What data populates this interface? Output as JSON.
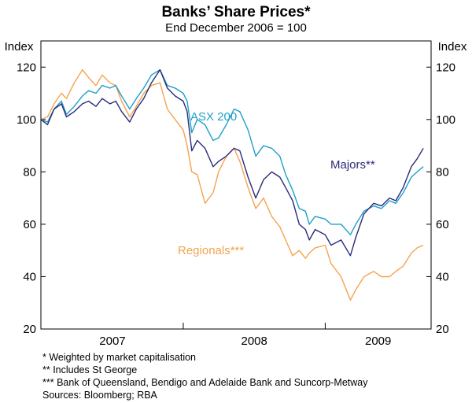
{
  "chart_data": {
    "type": "line",
    "title": "Banks’ Share Prices*",
    "subtitle": "End December 2006 = 100",
    "ylabel_left": "Index",
    "ylabel_right": "Index",
    "ylim": [
      20,
      130
    ],
    "yticks": [
      20,
      40,
      60,
      80,
      100,
      120
    ],
    "xlim": [
      "2006-12-29",
      "2009-09-30"
    ],
    "xtick_labels": [
      "2007",
      "2008",
      "2009"
    ],
    "grid": false,
    "series": [
      {
        "name": "ASX 200",
        "color": "#1fa0c8",
        "points": [
          [
            "2006-12-29",
            100
          ],
          [
            "2007-01-15",
            99
          ],
          [
            "2007-02-01",
            104
          ],
          [
            "2007-02-20",
            107
          ],
          [
            "2007-03-05",
            102
          ],
          [
            "2007-03-25",
            105
          ],
          [
            "2007-04-15",
            109
          ],
          [
            "2007-05-01",
            111
          ],
          [
            "2007-05-20",
            110
          ],
          [
            "2007-06-05",
            113
          ],
          [
            "2007-06-25",
            112
          ],
          [
            "2007-07-10",
            113
          ],
          [
            "2007-07-25",
            109
          ],
          [
            "2007-08-15",
            104
          ],
          [
            "2007-09-01",
            108
          ],
          [
            "2007-09-20",
            112
          ],
          [
            "2007-10-10",
            117
          ],
          [
            "2007-11-01",
            119
          ],
          [
            "2007-11-20",
            113
          ],
          [
            "2007-12-10",
            112
          ],
          [
            "2007-12-31",
            110
          ],
          [
            "2008-01-10",
            107
          ],
          [
            "2008-01-22",
            95
          ],
          [
            "2008-02-05",
            100
          ],
          [
            "2008-02-25",
            98
          ],
          [
            "2008-03-17",
            92
          ],
          [
            "2008-03-31",
            93
          ],
          [
            "2008-04-20",
            98
          ],
          [
            "2008-05-10",
            104
          ],
          [
            "2008-05-25",
            103
          ],
          [
            "2008-06-15",
            96
          ],
          [
            "2008-07-05",
            86
          ],
          [
            "2008-07-25",
            90
          ],
          [
            "2008-08-15",
            89
          ],
          [
            "2008-09-05",
            86
          ],
          [
            "2008-09-20",
            79
          ],
          [
            "2008-10-08",
            73
          ],
          [
            "2008-10-25",
            66
          ],
          [
            "2008-11-10",
            65
          ],
          [
            "2008-11-20",
            60
          ],
          [
            "2008-12-05",
            63
          ],
          [
            "2008-12-31",
            62
          ],
          [
            "2009-01-15",
            60
          ],
          [
            "2009-02-10",
            60
          ],
          [
            "2009-03-06",
            56
          ],
          [
            "2009-03-20",
            60
          ],
          [
            "2009-04-10",
            65
          ],
          [
            "2009-05-05",
            67
          ],
          [
            "2009-05-25",
            66
          ],
          [
            "2009-06-15",
            69
          ],
          [
            "2009-07-01",
            68
          ],
          [
            "2009-07-20",
            72
          ],
          [
            "2009-08-10",
            78
          ],
          [
            "2009-08-25",
            80
          ],
          [
            "2009-09-10",
            82
          ]
        ]
      },
      {
        "name": "Majors**",
        "color": "#2b2b7a",
        "points": [
          [
            "2006-12-29",
            100
          ],
          [
            "2007-01-15",
            98
          ],
          [
            "2007-02-01",
            104
          ],
          [
            "2007-02-20",
            106
          ],
          [
            "2007-03-05",
            101
          ],
          [
            "2007-03-25",
            103
          ],
          [
            "2007-04-15",
            106
          ],
          [
            "2007-05-01",
            107
          ],
          [
            "2007-05-20",
            105
          ],
          [
            "2007-06-05",
            108
          ],
          [
            "2007-06-25",
            106
          ],
          [
            "2007-07-10",
            107
          ],
          [
            "2007-07-25",
            103
          ],
          [
            "2007-08-15",
            99
          ],
          [
            "2007-09-01",
            104
          ],
          [
            "2007-09-20",
            108
          ],
          [
            "2007-10-10",
            114
          ],
          [
            "2007-11-01",
            119
          ],
          [
            "2007-11-20",
            112
          ],
          [
            "2007-12-10",
            109
          ],
          [
            "2007-12-31",
            107
          ],
          [
            "2008-01-10",
            103
          ],
          [
            "2008-01-22",
            88
          ],
          [
            "2008-02-05",
            92
          ],
          [
            "2008-02-25",
            89
          ],
          [
            "2008-03-17",
            82
          ],
          [
            "2008-03-31",
            84
          ],
          [
            "2008-04-20",
            86
          ],
          [
            "2008-05-10",
            89
          ],
          [
            "2008-05-25",
            88
          ],
          [
            "2008-06-15",
            78
          ],
          [
            "2008-07-05",
            70
          ],
          [
            "2008-07-25",
            77
          ],
          [
            "2008-08-15",
            80
          ],
          [
            "2008-09-05",
            78
          ],
          [
            "2008-09-20",
            74
          ],
          [
            "2008-10-08",
            69
          ],
          [
            "2008-10-25",
            60
          ],
          [
            "2008-11-10",
            58
          ],
          [
            "2008-11-20",
            54
          ],
          [
            "2008-12-05",
            58
          ],
          [
            "2008-12-31",
            56
          ],
          [
            "2009-01-15",
            52
          ],
          [
            "2009-02-10",
            54
          ],
          [
            "2009-03-06",
            48
          ],
          [
            "2009-03-20",
            55
          ],
          [
            "2009-04-10",
            64
          ],
          [
            "2009-05-05",
            68
          ],
          [
            "2009-05-25",
            67
          ],
          [
            "2009-06-15",
            70
          ],
          [
            "2009-07-01",
            69
          ],
          [
            "2009-07-20",
            74
          ],
          [
            "2009-08-10",
            82
          ],
          [
            "2009-08-25",
            85
          ],
          [
            "2009-09-10",
            89
          ]
        ]
      },
      {
        "name": "Regionals***",
        "color": "#f5a34e",
        "points": [
          [
            "2006-12-29",
            100
          ],
          [
            "2007-01-15",
            101
          ],
          [
            "2007-02-01",
            106
          ],
          [
            "2007-02-20",
            110
          ],
          [
            "2007-03-05",
            108
          ],
          [
            "2007-03-25",
            114
          ],
          [
            "2007-04-15",
            119
          ],
          [
            "2007-05-01",
            116
          ],
          [
            "2007-05-20",
            113
          ],
          [
            "2007-06-05",
            117
          ],
          [
            "2007-06-25",
            114
          ],
          [
            "2007-07-10",
            113
          ],
          [
            "2007-07-25",
            107
          ],
          [
            "2007-08-15",
            101
          ],
          [
            "2007-09-01",
            105
          ],
          [
            "2007-09-20",
            110
          ],
          [
            "2007-10-10",
            113
          ],
          [
            "2007-11-01",
            114
          ],
          [
            "2007-11-20",
            104
          ],
          [
            "2007-12-10",
            100
          ],
          [
            "2007-12-31",
            96
          ],
          [
            "2008-01-10",
            90
          ],
          [
            "2008-01-22",
            80
          ],
          [
            "2008-02-05",
            79
          ],
          [
            "2008-02-25",
            68
          ],
          [
            "2008-03-17",
            72
          ],
          [
            "2008-03-31",
            80
          ],
          [
            "2008-04-20",
            86
          ],
          [
            "2008-05-10",
            89
          ],
          [
            "2008-05-25",
            84
          ],
          [
            "2008-06-15",
            74
          ],
          [
            "2008-07-05",
            66
          ],
          [
            "2008-07-25",
            70
          ],
          [
            "2008-08-15",
            63
          ],
          [
            "2008-09-05",
            59
          ],
          [
            "2008-09-20",
            54
          ],
          [
            "2008-10-08",
            48
          ],
          [
            "2008-10-25",
            50
          ],
          [
            "2008-11-10",
            47
          ],
          [
            "2008-11-20",
            49
          ],
          [
            "2008-12-05",
            51
          ],
          [
            "2008-12-31",
            52
          ],
          [
            "2009-01-15",
            45
          ],
          [
            "2009-02-10",
            40
          ],
          [
            "2009-03-06",
            31
          ],
          [
            "2009-03-20",
            35
          ],
          [
            "2009-04-10",
            40
          ],
          [
            "2009-05-05",
            42
          ],
          [
            "2009-05-25",
            40
          ],
          [
            "2009-06-15",
            40
          ],
          [
            "2009-07-01",
            42
          ],
          [
            "2009-07-20",
            44
          ],
          [
            "2009-08-10",
            49
          ],
          [
            "2009-08-25",
            51
          ],
          [
            "2009-09-10",
            52
          ]
        ]
      }
    ],
    "annotations": [
      {
        "text": "ASX 200",
        "series": "ASX 200"
      },
      {
        "text": "Majors**",
        "series": "Majors**"
      },
      {
        "text": "Regionals***",
        "series": "Regionals***"
      }
    ]
  },
  "notes": {
    "note1": "*      Weighted by market capitalisation",
    "note2": "**    Includes St George",
    "note3": "***  Bank of Queensland, Bendigo and Adelaide Bank and Suncorp-Metway",
    "sources": "Sources: Bloomberg; RBA"
  }
}
